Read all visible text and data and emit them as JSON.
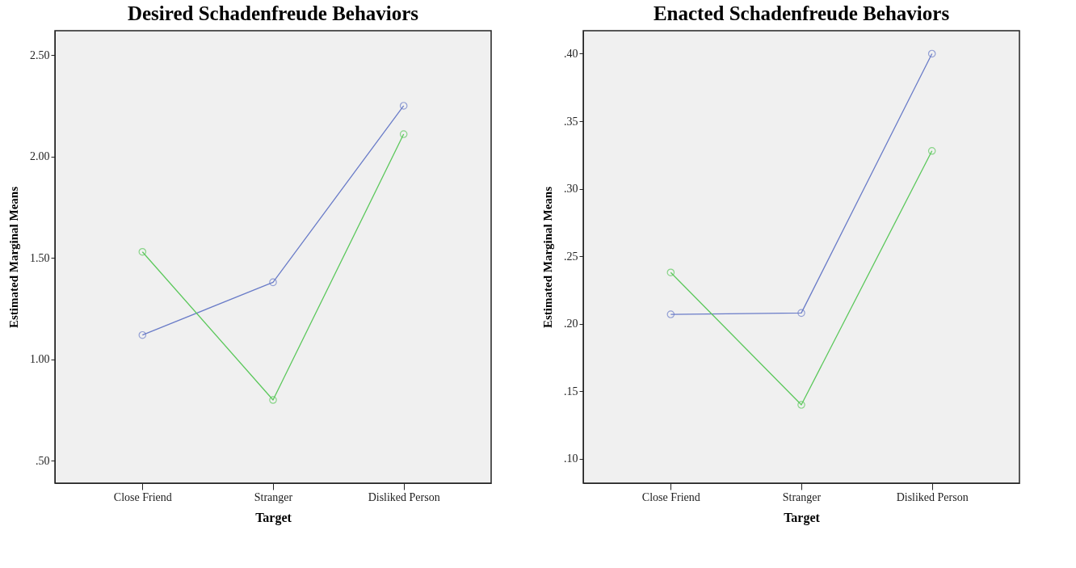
{
  "chart_data": [
    {
      "type": "line",
      "title": "Desired Schadenfreude Behaviors",
      "xlabel": "Target",
      "ylabel": "Estimated Marginal Means",
      "categories": [
        "Close Friend",
        "Stranger",
        "Disliked Person"
      ],
      "marker": "circle",
      "ylim": [
        0.39,
        2.62
      ],
      "yticks": [
        {
          "value": 0.5,
          "label": ".50"
        },
        {
          "value": 1,
          "label": "1.00"
        },
        {
          "value": 1.5,
          "label": "1.50"
        },
        {
          "value": 2,
          "label": "2.00"
        },
        {
          "value": 2.5,
          "label": "2.50"
        }
      ],
      "series": [
        {
          "color": "#6a7cc8",
          "values": [
            1.12,
            1.38,
            2.25
          ]
        },
        {
          "color": "#5cc85c",
          "values": [
            1.53,
            0.8,
            2.11
          ]
        }
      ]
    },
    {
      "type": "line",
      "title": "Enacted Schadenfreude Behaviors",
      "xlabel": "Target",
      "ylabel": "Estimated Marginal Means",
      "categories": [
        "Close Friend",
        "Stranger",
        "Disliked Person"
      ],
      "marker": "circle",
      "ylim": [
        0.082,
        0.417
      ],
      "yticks": [
        {
          "value": 0.1,
          "label": ".10"
        },
        {
          "value": 0.15,
          "label": ".15"
        },
        {
          "value": 0.2,
          "label": ".20"
        },
        {
          "value": 0.25,
          "label": ".25"
        },
        {
          "value": 0.3,
          "label": ".30"
        },
        {
          "value": 0.35,
          "label": ".35"
        },
        {
          "value": 0.4,
          "label": ".40"
        }
      ],
      "series": [
        {
          "color": "#6a7cc8",
          "values": [
            0.207,
            0.208,
            0.4
          ]
        },
        {
          "color": "#5cc85c",
          "values": [
            0.238,
            0.14,
            0.328
          ]
        }
      ]
    }
  ]
}
